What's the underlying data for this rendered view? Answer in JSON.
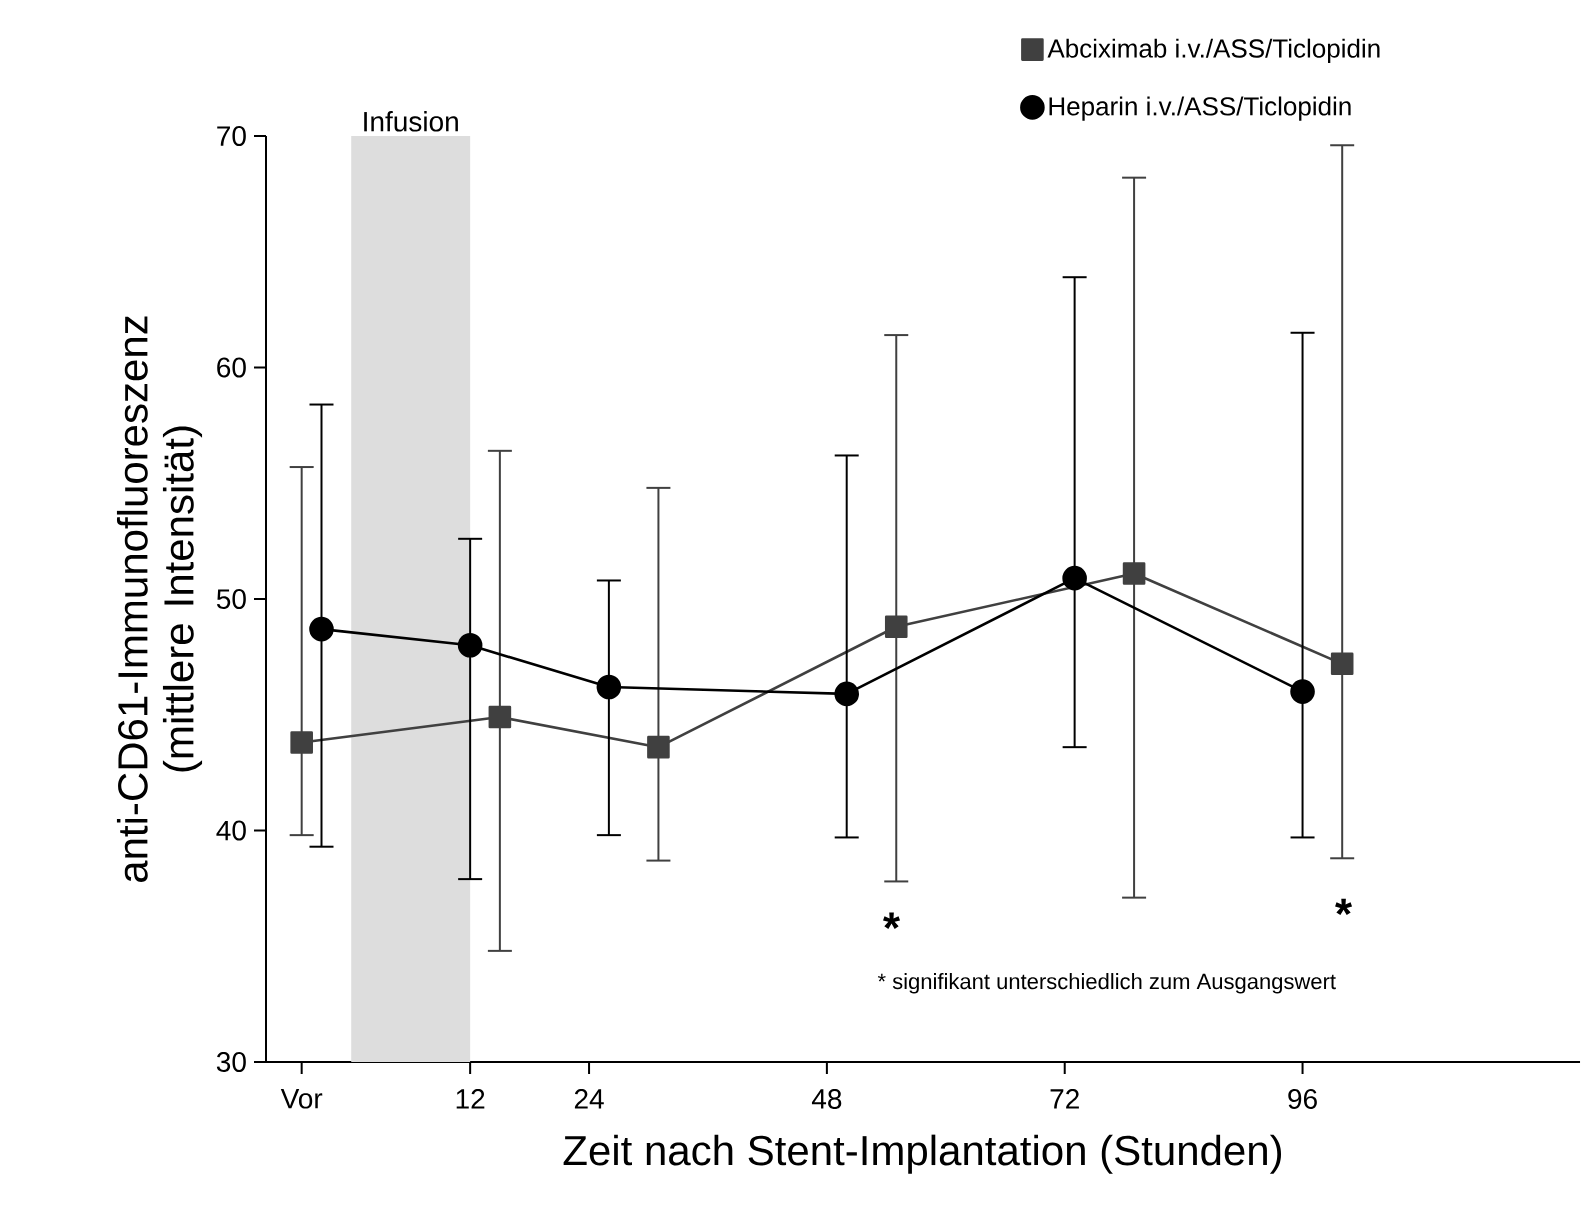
{
  "chart_data": {
    "type": "line",
    "xlabel": "Zeit nach Stent-Implantation (Stunden)",
    "ylabel": "anti-CD61-Immunofluoreszenz (mittlere Intensität)",
    "xlim": [
      -8.6,
      124
    ],
    "ylim": [
      30,
      70
    ],
    "xticks": [
      {
        "value": -5,
        "label": "Vor"
      },
      12,
      24,
      48,
      72,
      96
    ],
    "yticks": [
      30,
      40,
      50,
      60,
      70
    ],
    "grid": false,
    "legend": "top right",
    "series": [
      {
        "name": "Abciximab i.v./ASS/Ticlopidin",
        "color": "#404040",
        "marker": "square",
        "x": [
          -5,
          15,
          31,
          55,
          79,
          100
        ],
        "values": [
          43.8,
          44.9,
          43.6,
          48.8,
          51.1,
          47.2
        ],
        "errors": [
          [
            39.8,
            55.7
          ],
          [
            34.8,
            56.4
          ],
          [
            38.7,
            54.8
          ],
          [
            37.8,
            61.4
          ],
          [
            37.1,
            68.2
          ],
          [
            38.8,
            69.6
          ]
        ]
      },
      {
        "name": "Heparin i.v./ASS/Ticlopidin",
        "color": "#000000",
        "marker": "circle",
        "x": [
          -3,
          12,
          26,
          50,
          73,
          96
        ],
        "values": [
          48.7,
          48.0,
          46.2,
          45.9,
          50.9,
          46.0
        ],
        "errors": [
          [
            39.3,
            58.4
          ],
          [
            37.9,
            52.6
          ],
          [
            39.8,
            50.8
          ],
          [
            39.7,
            56.2
          ],
          [
            43.6,
            63.9
          ],
          [
            39.7,
            61.5
          ]
        ]
      }
    ],
    "bands": [
      {
        "axis": "x",
        "from": 0,
        "to": 12,
        "label": "Infusion",
        "color": "#dddddd"
      }
    ],
    "annotations": [
      "*",
      "*",
      "* signifikant unterschiedlich zum Ausgangswert"
    ]
  }
}
